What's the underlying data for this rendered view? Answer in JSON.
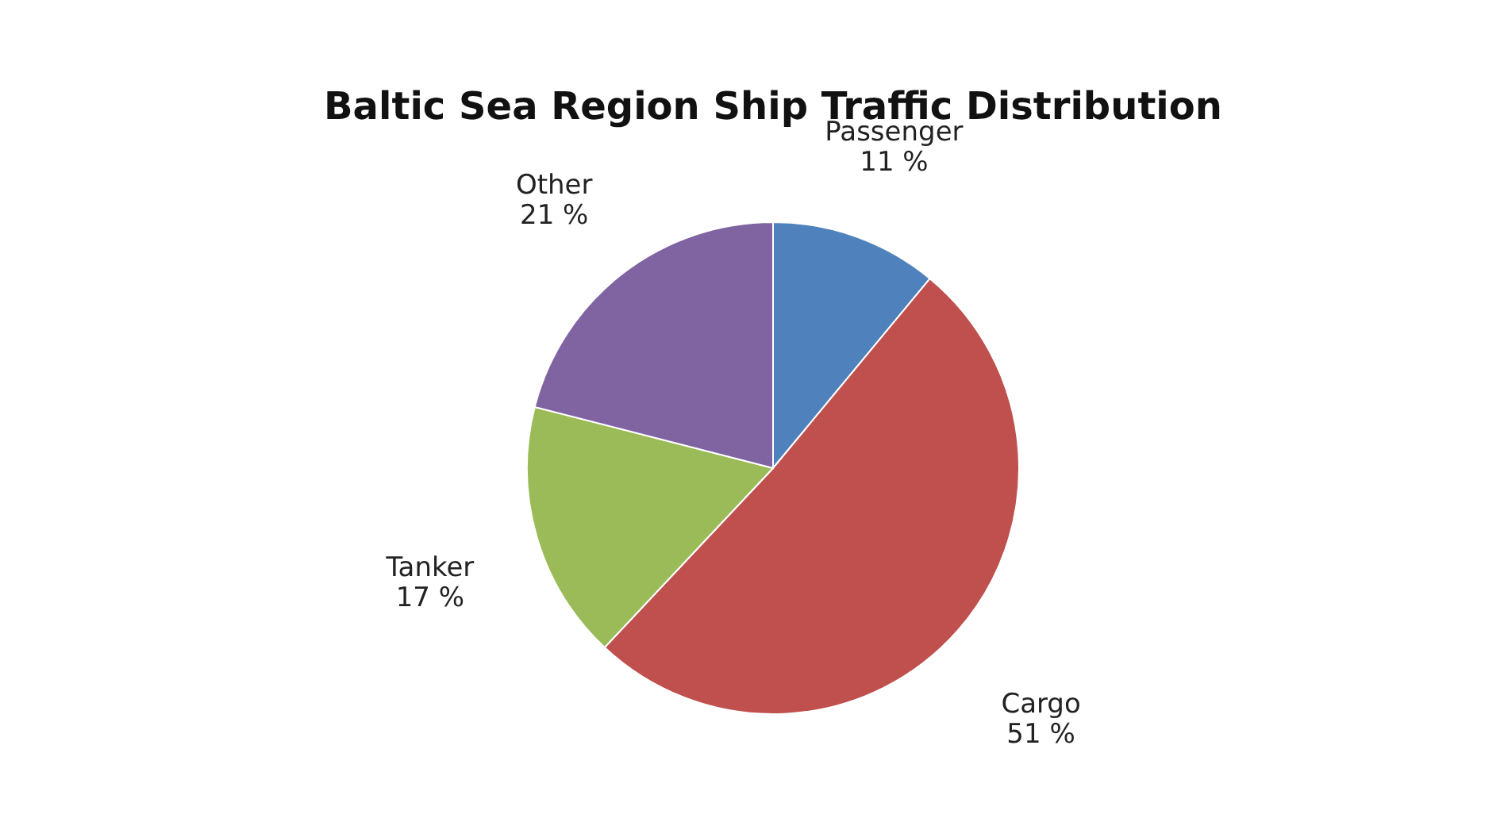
{
  "chart_data": {
    "type": "pie",
    "title": "Baltic Sea Region Ship Traffic Distribution",
    "categories": [
      "Passenger",
      "Cargo",
      "Tanker",
      "Other"
    ],
    "values": [
      11,
      51,
      17,
      21
    ],
    "colors": [
      "#4f81bd",
      "#c0504d",
      "#9bbb59",
      "#8064a2"
    ],
    "value_labels": [
      "11 %",
      "51 %",
      "17 %",
      "21 %"
    ]
  }
}
